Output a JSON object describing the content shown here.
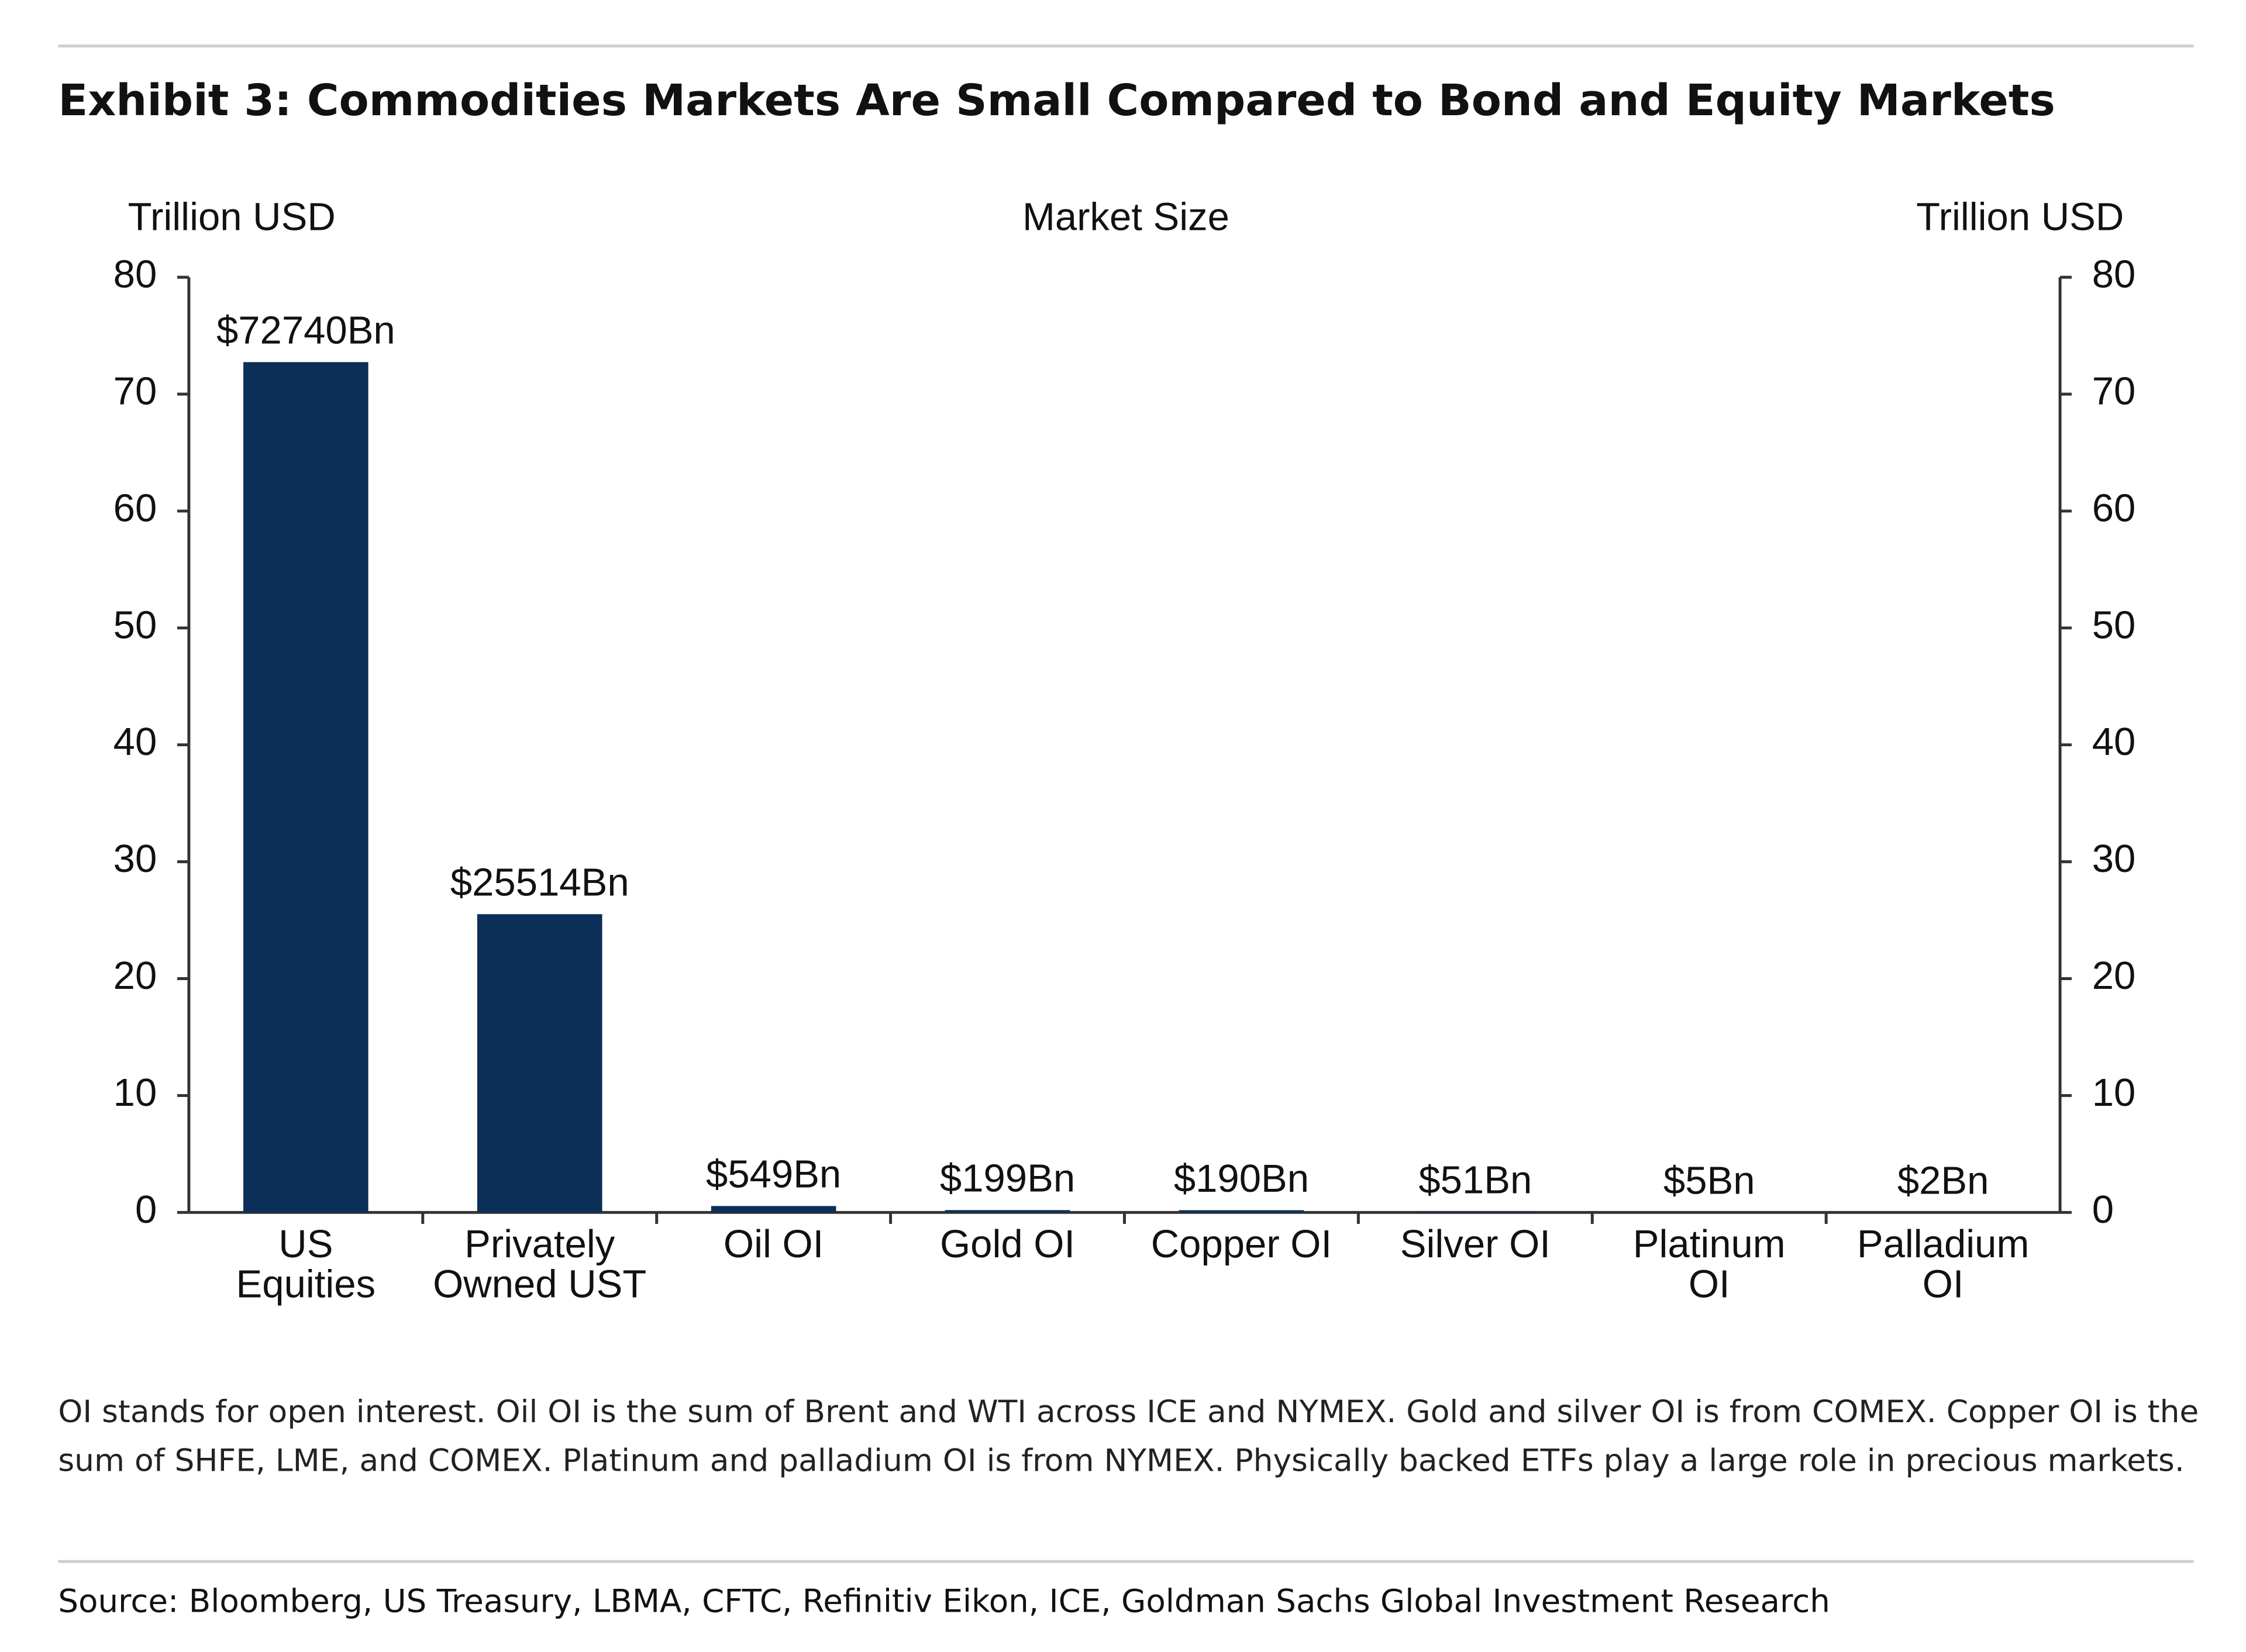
{
  "chart_data": {
    "type": "bar",
    "title": "Exhibit 3: Commodities Markets Are Small Compared to Bond and Equity Markets",
    "subtitle": "Market Size",
    "y_label": "Trillion USD",
    "y2_label": "Trillion USD",
    "categories": [
      [
        "US",
        "Equities"
      ],
      [
        "Privately",
        "Owned UST"
      ],
      [
        "Oil OI"
      ],
      [
        "Gold OI"
      ],
      [
        "Copper OI"
      ],
      [
        "Silver OI"
      ],
      [
        "Platinum",
        "OI"
      ],
      [
        "Palladium",
        "OI"
      ]
    ],
    "values": [
      72.74,
      25.514,
      0.549,
      0.199,
      0.19,
      0.051,
      0.005,
      0.002
    ],
    "value_labels": [
      "$72740Bn",
      "$25514Bn",
      "$549Bn",
      "$199Bn",
      "$190Bn",
      "$51Bn",
      "$5Bn",
      "$2Bn"
    ],
    "color": "#0b2f57",
    "ylim": [
      0,
      80
    ],
    "yticks": [
      0,
      10,
      20,
      30,
      40,
      50,
      60,
      70,
      80
    ],
    "y2lim": [
      0,
      80
    ],
    "y2ticks": [
      0,
      10,
      20,
      30,
      40,
      50,
      60,
      70,
      80
    ],
    "grid": false,
    "note": "OI stands for open interest. Oil OI is the sum of Brent and WTI across ICE and NYMEX. Gold and silver OI is from COMEX. Copper OI is the sum of SHFE, LME, and COMEX. Platinum and palladium OI is from NYMEX. Physically backed ETFs play a large role in precious markets.",
    "source": "Source: Bloomberg, US Treasury, LBMA, CFTC, Refinitiv Eikon, ICE, Goldman Sachs Global Investment Research"
  }
}
